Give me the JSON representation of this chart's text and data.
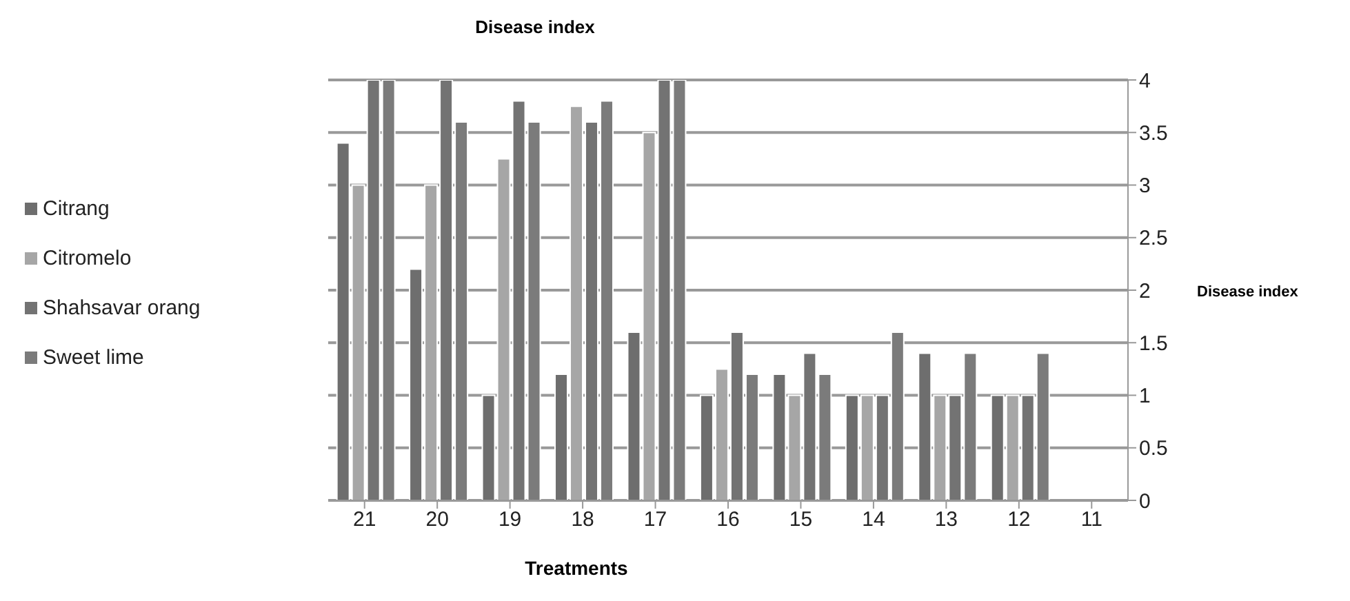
{
  "chart_data": {
    "type": "bar",
    "title": "Disease index",
    "xlabel": "Treatments",
    "ylabel": "Disease index",
    "categories": [
      "21",
      "20",
      "19",
      "18",
      "17",
      "16",
      "15",
      "14",
      "13",
      "12",
      "11"
    ],
    "series": [
      {
        "name": "Citrang",
        "color": "#6e6e6e",
        "values": [
          3.4,
          2.2,
          1.0,
          1.2,
          1.6,
          1.0,
          1.2,
          1.0,
          1.4,
          1.0,
          0
        ]
      },
      {
        "name": "Citromelo",
        "color": "#a6a6a6",
        "values": [
          3.0,
          3.0,
          3.25,
          3.75,
          3.5,
          1.25,
          1.0,
          1.0,
          1.0,
          1.0,
          0
        ]
      },
      {
        "name": "Shahsavar orang",
        "color": "#737373",
        "values": [
          4,
          4,
          3.8,
          3.6,
          4,
          1.6,
          1.4,
          1.0,
          1.0,
          1.0,
          0
        ]
      },
      {
        "name": "Sweet lime",
        "color": "#7b7b7b",
        "values": [
          4,
          3.6,
          3.6,
          3.8,
          4,
          1.2,
          1.2,
          1.6,
          1.4,
          1.4,
          0
        ]
      }
    ],
    "ylim": [
      0,
      4
    ],
    "yticks": [
      0,
      0.5,
      1,
      1.5,
      2,
      2.5,
      3,
      3.5,
      4
    ],
    "grid": "y",
    "legend": "left"
  }
}
